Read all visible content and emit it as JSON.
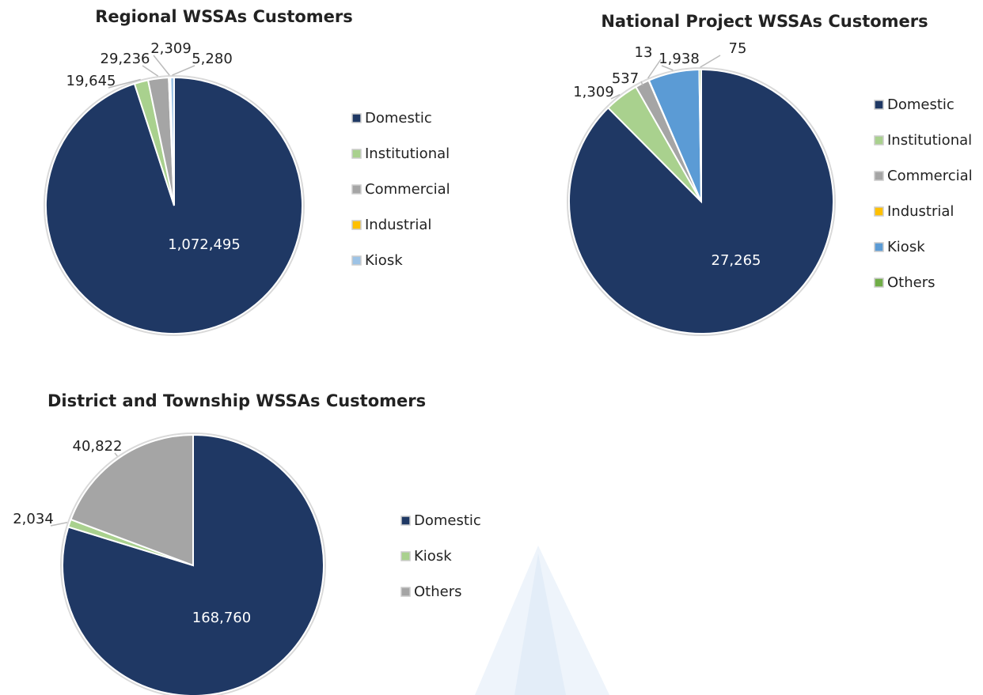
{
  "chart_data": [
    {
      "type": "pie",
      "title": "Regional WSSAs Customers",
      "categories": [
        "Domestic",
        "Institutional",
        "Commercial",
        "Industrial",
        "Kiosk"
      ],
      "values": [
        1072495,
        19645,
        29236,
        2309,
        5280
      ],
      "value_labels": [
        "1,072,495",
        "19,645",
        "29,236",
        "2,309",
        "5,280"
      ],
      "colors": [
        "#1f3864",
        "#a9d18e",
        "#a5a5a5",
        "#ffc000",
        "#9dc3e6"
      ]
    },
    {
      "type": "pie",
      "title": "National Project WSSAs Customers",
      "categories": [
        "Domestic",
        "Institutional",
        "Commercial",
        "Industrial",
        "Kiosk",
        "Others"
      ],
      "values": [
        27265,
        1309,
        537,
        13,
        1938,
        75
      ],
      "value_labels": [
        "27,265",
        "1,309",
        "537",
        "13",
        "1,938",
        "75"
      ],
      "colors": [
        "#1f3864",
        "#a9d18e",
        "#a5a5a5",
        "#ffc000",
        "#5b9bd5",
        "#70ad47"
      ]
    },
    {
      "type": "pie",
      "title": "District and Township WSSAs Customers",
      "categories": [
        "Domestic",
        "Kiosk",
        "Others"
      ],
      "values": [
        168760,
        2034,
        40822
      ],
      "value_labels": [
        "168,760",
        "2,034",
        "40,822"
      ],
      "colors": [
        "#1f3864",
        "#a9d18e",
        "#a5a5a5"
      ]
    }
  ]
}
